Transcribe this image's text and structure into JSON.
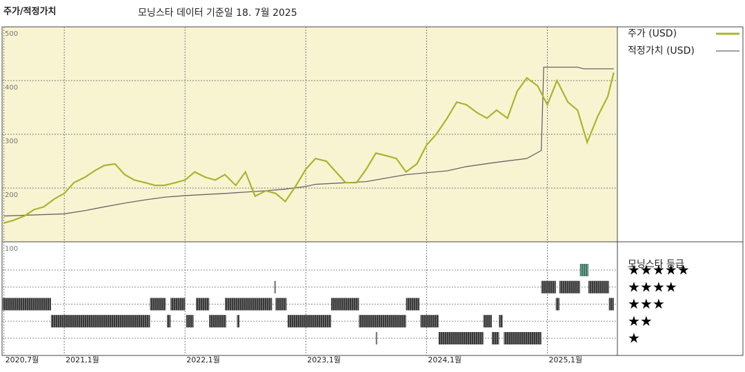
{
  "chart_data": {
    "type": "line",
    "title": "주가/적정가치",
    "subtitle": "모닝스타 데이터 기준일 18. 7월 2025",
    "xlim": [
      2020.485,
      2025.58
    ],
    "xticks": [
      {
        "value": 2020.5,
        "label": "2020,7월"
      },
      {
        "value": 2021,
        "label": "2021,1월"
      },
      {
        "value": 2022,
        "label": "2022,1월"
      },
      {
        "value": 2023,
        "label": "2023,1월"
      },
      {
        "value": 2024,
        "label": "2024,1월"
      },
      {
        "value": 2025,
        "label": "2025,1월"
      }
    ],
    "ylim": [
      100,
      500
    ],
    "yticks": [
      100,
      200,
      300,
      400,
      500
    ],
    "grid": true,
    "series": [
      {
        "name": "주가 (USD)",
        "color": "#a8b52a",
        "x": [
          2020.5,
          2020.58,
          2020.67,
          2020.75,
          2020.83,
          2020.92,
          2021.0,
          2021.08,
          2021.17,
          2021.25,
          2021.33,
          2021.42,
          2021.5,
          2021.58,
          2021.67,
          2021.75,
          2021.83,
          2021.92,
          2022.0,
          2022.08,
          2022.17,
          2022.25,
          2022.33,
          2022.42,
          2022.5,
          2022.58,
          2022.67,
          2022.75,
          2022.83,
          2022.92,
          2023.0,
          2023.08,
          2023.17,
          2023.25,
          2023.33,
          2023.42,
          2023.5,
          2023.58,
          2023.67,
          2023.75,
          2023.83,
          2023.92,
          2024.0,
          2024.08,
          2024.17,
          2024.25,
          2024.33,
          2024.42,
          2024.5,
          2024.58,
          2024.67,
          2024.75,
          2024.83,
          2024.92,
          2025.0,
          2025.08,
          2025.17,
          2025.25,
          2025.33,
          2025.42,
          2025.5,
          2025.55
        ],
        "values": [
          135,
          140,
          148,
          160,
          165,
          180,
          190,
          210,
          220,
          232,
          242,
          245,
          225,
          215,
          210,
          205,
          205,
          210,
          215,
          230,
          220,
          215,
          225,
          205,
          230,
          185,
          195,
          190,
          175,
          205,
          235,
          255,
          250,
          230,
          210,
          210,
          235,
          265,
          260,
          255,
          230,
          245,
          280,
          300,
          330,
          360,
          355,
          340,
          330,
          345,
          330,
          380,
          405,
          390,
          355,
          400,
          360,
          345,
          285,
          335,
          370,
          415
        ]
      },
      {
        "name": "적정가치 (USD)",
        "color": "#666666",
        "x": [
          2020.5,
          2021.0,
          2021.17,
          2021.33,
          2021.5,
          2021.67,
          2021.83,
          2022.0,
          2022.33,
          2022.67,
          2022.83,
          2023.0,
          2023.08,
          2023.5,
          2023.83,
          2024.17,
          2024.33,
          2024.58,
          2024.83,
          2024.95,
          2024.97,
          2025.25,
          2025.3,
          2025.55
        ],
        "values": [
          148,
          152,
          158,
          165,
          172,
          178,
          183,
          186,
          190,
          195,
          198,
          203,
          207,
          212,
          225,
          232,
          240,
          248,
          255,
          270,
          425,
          425,
          422,
          422
        ]
      }
    ],
    "rating_title": "모닝스타 등급",
    "rating_levels": [
      {
        "stars": 5,
        "label": "★★★★★",
        "color": "#3f8f70"
      },
      {
        "stars": 4,
        "label": "★★★★",
        "color": "#333333"
      },
      {
        "stars": 3,
        "label": "★★★",
        "color": "#333333"
      },
      {
        "stars": 2,
        "label": "★★",
        "color": "#333333"
      },
      {
        "stars": 1,
        "label": "★",
        "color": "#333333"
      }
    ],
    "rating_periods": [
      {
        "start": 2020.49,
        "end": 2020.89,
        "stars": 3
      },
      {
        "start": 2021.71,
        "end": 2021.84,
        "stars": 3
      },
      {
        "start": 2021.88,
        "end": 2022.0,
        "stars": 3
      },
      {
        "start": 2022.09,
        "end": 2022.2,
        "stars": 3
      },
      {
        "start": 2022.33,
        "end": 2022.72,
        "stars": 3
      },
      {
        "start": 2022.75,
        "end": 2022.84,
        "stars": 3
      },
      {
        "start": 2023.21,
        "end": 2023.44,
        "stars": 3
      },
      {
        "start": 2023.83,
        "end": 2023.94,
        "stars": 3
      },
      {
        "start": 2025.07,
        "end": 2025.1,
        "stars": 3
      },
      {
        "start": 2025.51,
        "end": 2025.55,
        "stars": 3
      },
      {
        "start": 2020.89,
        "end": 2021.71,
        "stars": 2
      },
      {
        "start": 2021.85,
        "end": 2021.88,
        "stars": 2
      },
      {
        "start": 2022.01,
        "end": 2022.07,
        "stars": 2
      },
      {
        "start": 2022.2,
        "end": 2022.34,
        "stars": 2
      },
      {
        "start": 2022.43,
        "end": 2022.45,
        "stars": 2
      },
      {
        "start": 2022.85,
        "end": 2023.21,
        "stars": 2
      },
      {
        "start": 2023.44,
        "end": 2023.83,
        "stars": 2
      },
      {
        "start": 2023.95,
        "end": 2024.1,
        "stars": 2
      },
      {
        "start": 2024.47,
        "end": 2024.54,
        "stars": 2
      },
      {
        "start": 2024.6,
        "end": 2024.63,
        "stars": 2
      },
      {
        "start": 2022.74,
        "end": 2022.75,
        "stars": 4
      },
      {
        "start": 2024.95,
        "end": 2025.07,
        "stars": 4
      },
      {
        "start": 2025.1,
        "end": 2025.27,
        "stars": 4
      },
      {
        "start": 2025.34,
        "end": 2025.51,
        "stars": 4
      },
      {
        "start": 2023.58,
        "end": 2023.59,
        "stars": 1
      },
      {
        "start": 2024.1,
        "end": 2024.47,
        "stars": 1
      },
      {
        "start": 2024.54,
        "end": 2024.6,
        "stars": 1
      },
      {
        "start": 2024.64,
        "end": 2024.95,
        "stars": 1
      },
      {
        "start": 2025.27,
        "end": 2025.34,
        "stars": 5
      }
    ]
  }
}
